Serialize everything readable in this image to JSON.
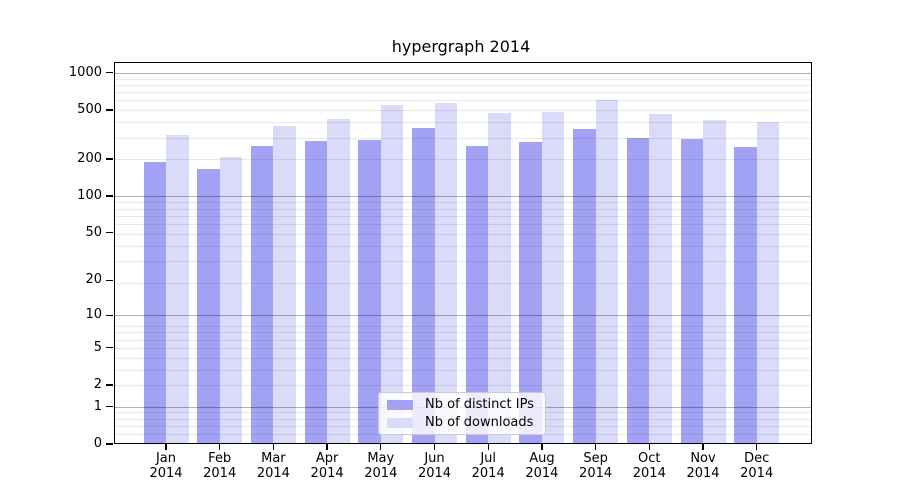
{
  "chart_data": {
    "type": "bar",
    "title": "hypergraph 2014",
    "categories": [
      "Jan 2014",
      "Feb 2014",
      "Mar 2014",
      "Apr 2014",
      "May 2014",
      "Jun 2014",
      "Jul 2014",
      "Aug 2014",
      "Sep 2014",
      "Oct 2014",
      "Nov 2014",
      "Dec 2014"
    ],
    "series": [
      {
        "name": "Nb of distinct IPs",
        "color": "#a2a2f5",
        "values": [
          190,
          165,
          255,
          280,
          285,
          355,
          255,
          275,
          350,
          295,
          290,
          250
        ]
      },
      {
        "name": "Nb of downloads",
        "color": "#dadaf9",
        "values": [
          315,
          210,
          370,
          425,
          550,
          570,
          475,
          480,
          600,
          465,
          415,
          400
        ]
      }
    ],
    "xlabel": "",
    "ylabel": "",
    "y_ticks": [
      0,
      1,
      2,
      5,
      10,
      20,
      50,
      100,
      200,
      500,
      1000
    ],
    "y_scale": "log1p",
    "ylim": [
      0,
      1224
    ],
    "grid": true,
    "legend_position": "lower center",
    "colors": {
      "bar_dark": "#a2a2f5",
      "bar_light": "#dadaf9",
      "major_grid": "#bdbdbd",
      "minor_grid": "#e9e9e9",
      "axis": "#000000",
      "background": "#ffffff"
    }
  }
}
